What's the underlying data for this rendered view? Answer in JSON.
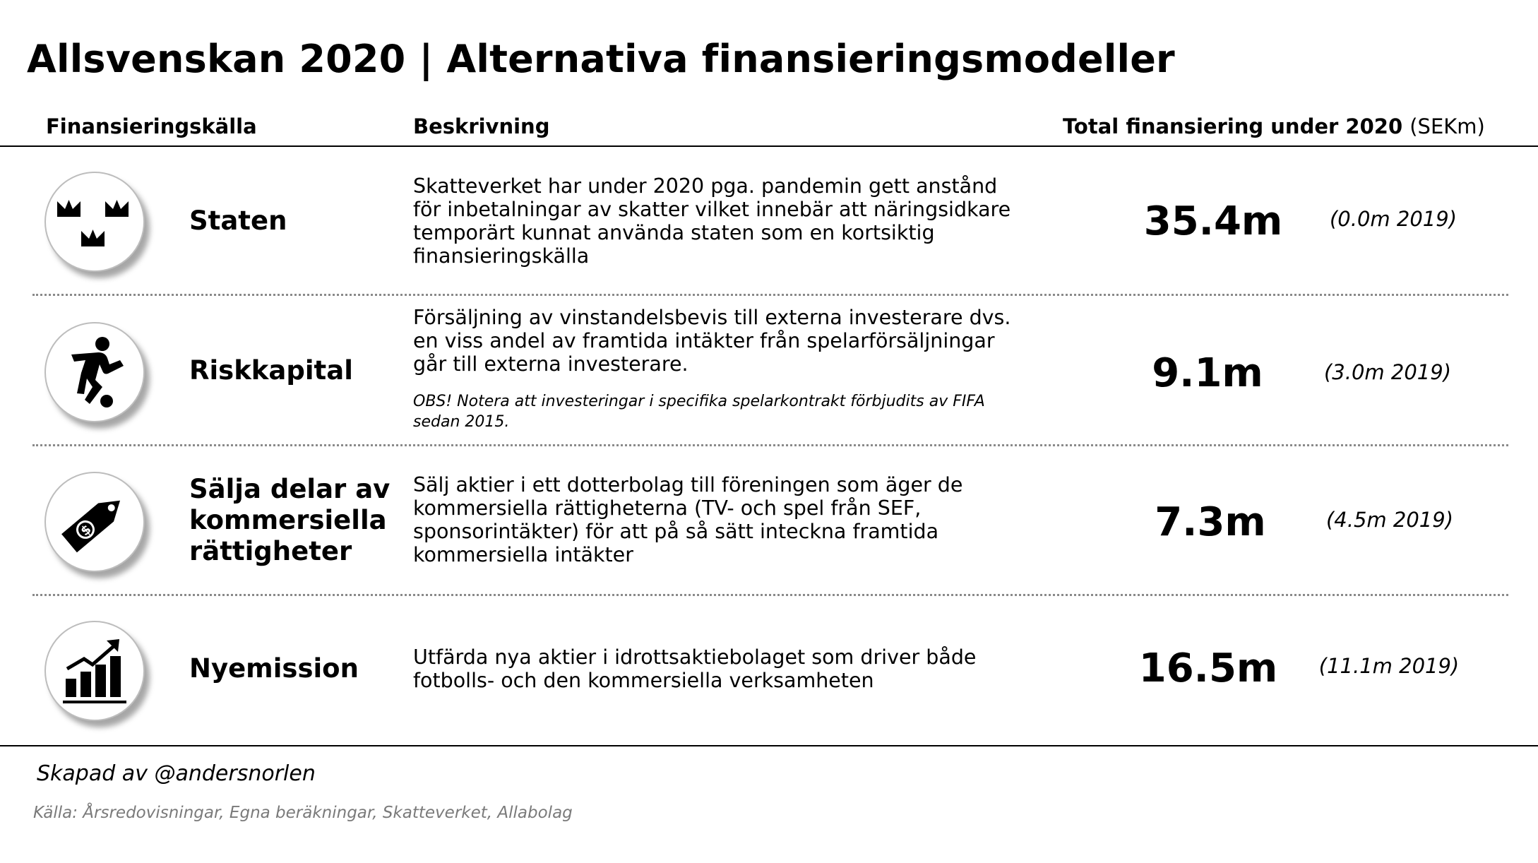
{
  "title": "Allsvenskan 2020 | Alternativa finansieringsmodeller",
  "headers": {
    "source": "Finansieringskälla",
    "description": "Beskrivning",
    "total": "Total finansiering under 2020",
    "total_unit": "(SEKm)"
  },
  "rows": [
    {
      "icon": "three-crowns-icon",
      "label": "Staten",
      "description": "Skatteverket har under 2020 pga. pandemin gett anstånd för inbetalningar av skatter vilket innebär att näringsidkare temporärt kunnat använda staten som en kortsiktig finansieringskälla",
      "note": "",
      "amount": "35.4m",
      "previous": "(0.0m 2019)"
    },
    {
      "icon": "football-player-icon",
      "label": "Riskkapital",
      "description": "Försäljning av vinstandelsbevis till externa investerare dvs. en viss andel av framtida intäkter från spelarförsäljningar går till externa investerare.",
      "note": "OBS! Notera att investeringar i specifika spelarkontrakt förbjudits av FIFA sedan 2015.",
      "amount": "9.1m",
      "previous": "(3.0m 2019)"
    },
    {
      "icon": "price-tag-dollar-icon",
      "label": "Sälja delar av kommersiella rättigheter",
      "description": "Sälj aktier i ett dotterbolag till föreningen som äger de kommersiella rättigheterna (TV- och spel från SEF, sponsorintäkter) för att på så sätt inteckna framtida kommersiella intäkter",
      "note": "",
      "amount": "7.3m",
      "previous": "(4.5m 2019)"
    },
    {
      "icon": "growth-bar-chart-icon",
      "label": "Nyemission",
      "description": "Utfärda nya aktier i idrottsaktiebolaget som driver både fotbolls- och den kommersiella verksamheten",
      "note": "",
      "amount": "16.5m",
      "previous": "(11.1m 2019)"
    }
  ],
  "footer": {
    "credit": "Skapad av @andersnorlen",
    "source": "Källa: Årsredovisningar, Egna beräkningar, Skatteverket, Allabolag"
  }
}
